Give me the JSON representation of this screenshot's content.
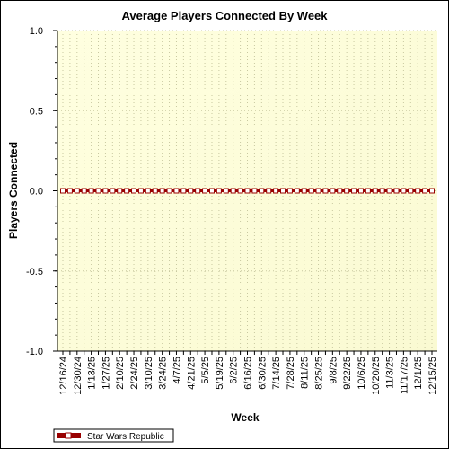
{
  "chart_data": {
    "type": "line",
    "title": "Average Players Connected By Week",
    "xlabel": "Week",
    "ylabel": "Players Connected",
    "ylim": [
      -1.0,
      1.0
    ],
    "yticks": [
      "1.0",
      "0.5",
      "0.0",
      "-0.5",
      "-1.0"
    ],
    "x": [
      "12/16/24",
      "12/23/24",
      "12/30/24",
      "1/6/25",
      "1/13/25",
      "1/20/25",
      "1/27/25",
      "2/3/25",
      "2/10/25",
      "2/17/25",
      "2/24/25",
      "3/3/25",
      "3/10/25",
      "3/17/25",
      "3/24/25",
      "3/31/25",
      "4/7/25",
      "4/14/25",
      "4/21/25",
      "4/28/25",
      "5/5/25",
      "5/12/25",
      "5/19/25",
      "5/26/25",
      "6/2/25",
      "6/9/25",
      "6/16/25",
      "6/23/25",
      "6/30/25",
      "7/7/25",
      "7/14/25",
      "7/21/25",
      "7/28/25",
      "8/4/25",
      "8/11/25",
      "8/18/25",
      "8/25/25",
      "9/1/25",
      "9/8/25",
      "9/15/25",
      "9/22/25",
      "9/29/25",
      "10/6/25",
      "10/13/25",
      "10/20/25",
      "10/27/25",
      "11/3/25",
      "11/10/25",
      "11/17/25",
      "11/24/25",
      "12/1/25",
      "12/8/25",
      "12/15/25"
    ],
    "x_labels_shown": [
      "12/16/24",
      "12/30/24",
      "1/13/25",
      "1/27/25",
      "2/10/25",
      "2/24/25",
      "3/10/25",
      "3/24/25",
      "4/7/25",
      "4/21/25",
      "5/5/25",
      "5/19/25",
      "6/2/25",
      "6/16/25",
      "6/30/25",
      "7/14/25",
      "7/28/25",
      "8/11/25",
      "8/25/25",
      "9/8/25",
      "9/22/25",
      "10/6/25",
      "10/20/25",
      "11/3/25",
      "11/17/25",
      "12/1/25",
      "12/15/25"
    ],
    "series": [
      {
        "name": "Star Wars Republic",
        "color": "#990000",
        "marker_fill": "#ffffff",
        "values": [
          0,
          0,
          0,
          0,
          0,
          0,
          0,
          0,
          0,
          0,
          0,
          0,
          0,
          0,
          0,
          0,
          0,
          0,
          0,
          0,
          0,
          0,
          0,
          0,
          0,
          0,
          0,
          0,
          0,
          0,
          0,
          0,
          0,
          0,
          0,
          0,
          0,
          0,
          0,
          0,
          0,
          0,
          0,
          0,
          0,
          0,
          0,
          0,
          0,
          0,
          0,
          0,
          0
        ]
      }
    ],
    "grid": true,
    "legend_position": "bottom-left",
    "plot_background": [
      "#ffffe0",
      "#fafad2"
    ]
  }
}
